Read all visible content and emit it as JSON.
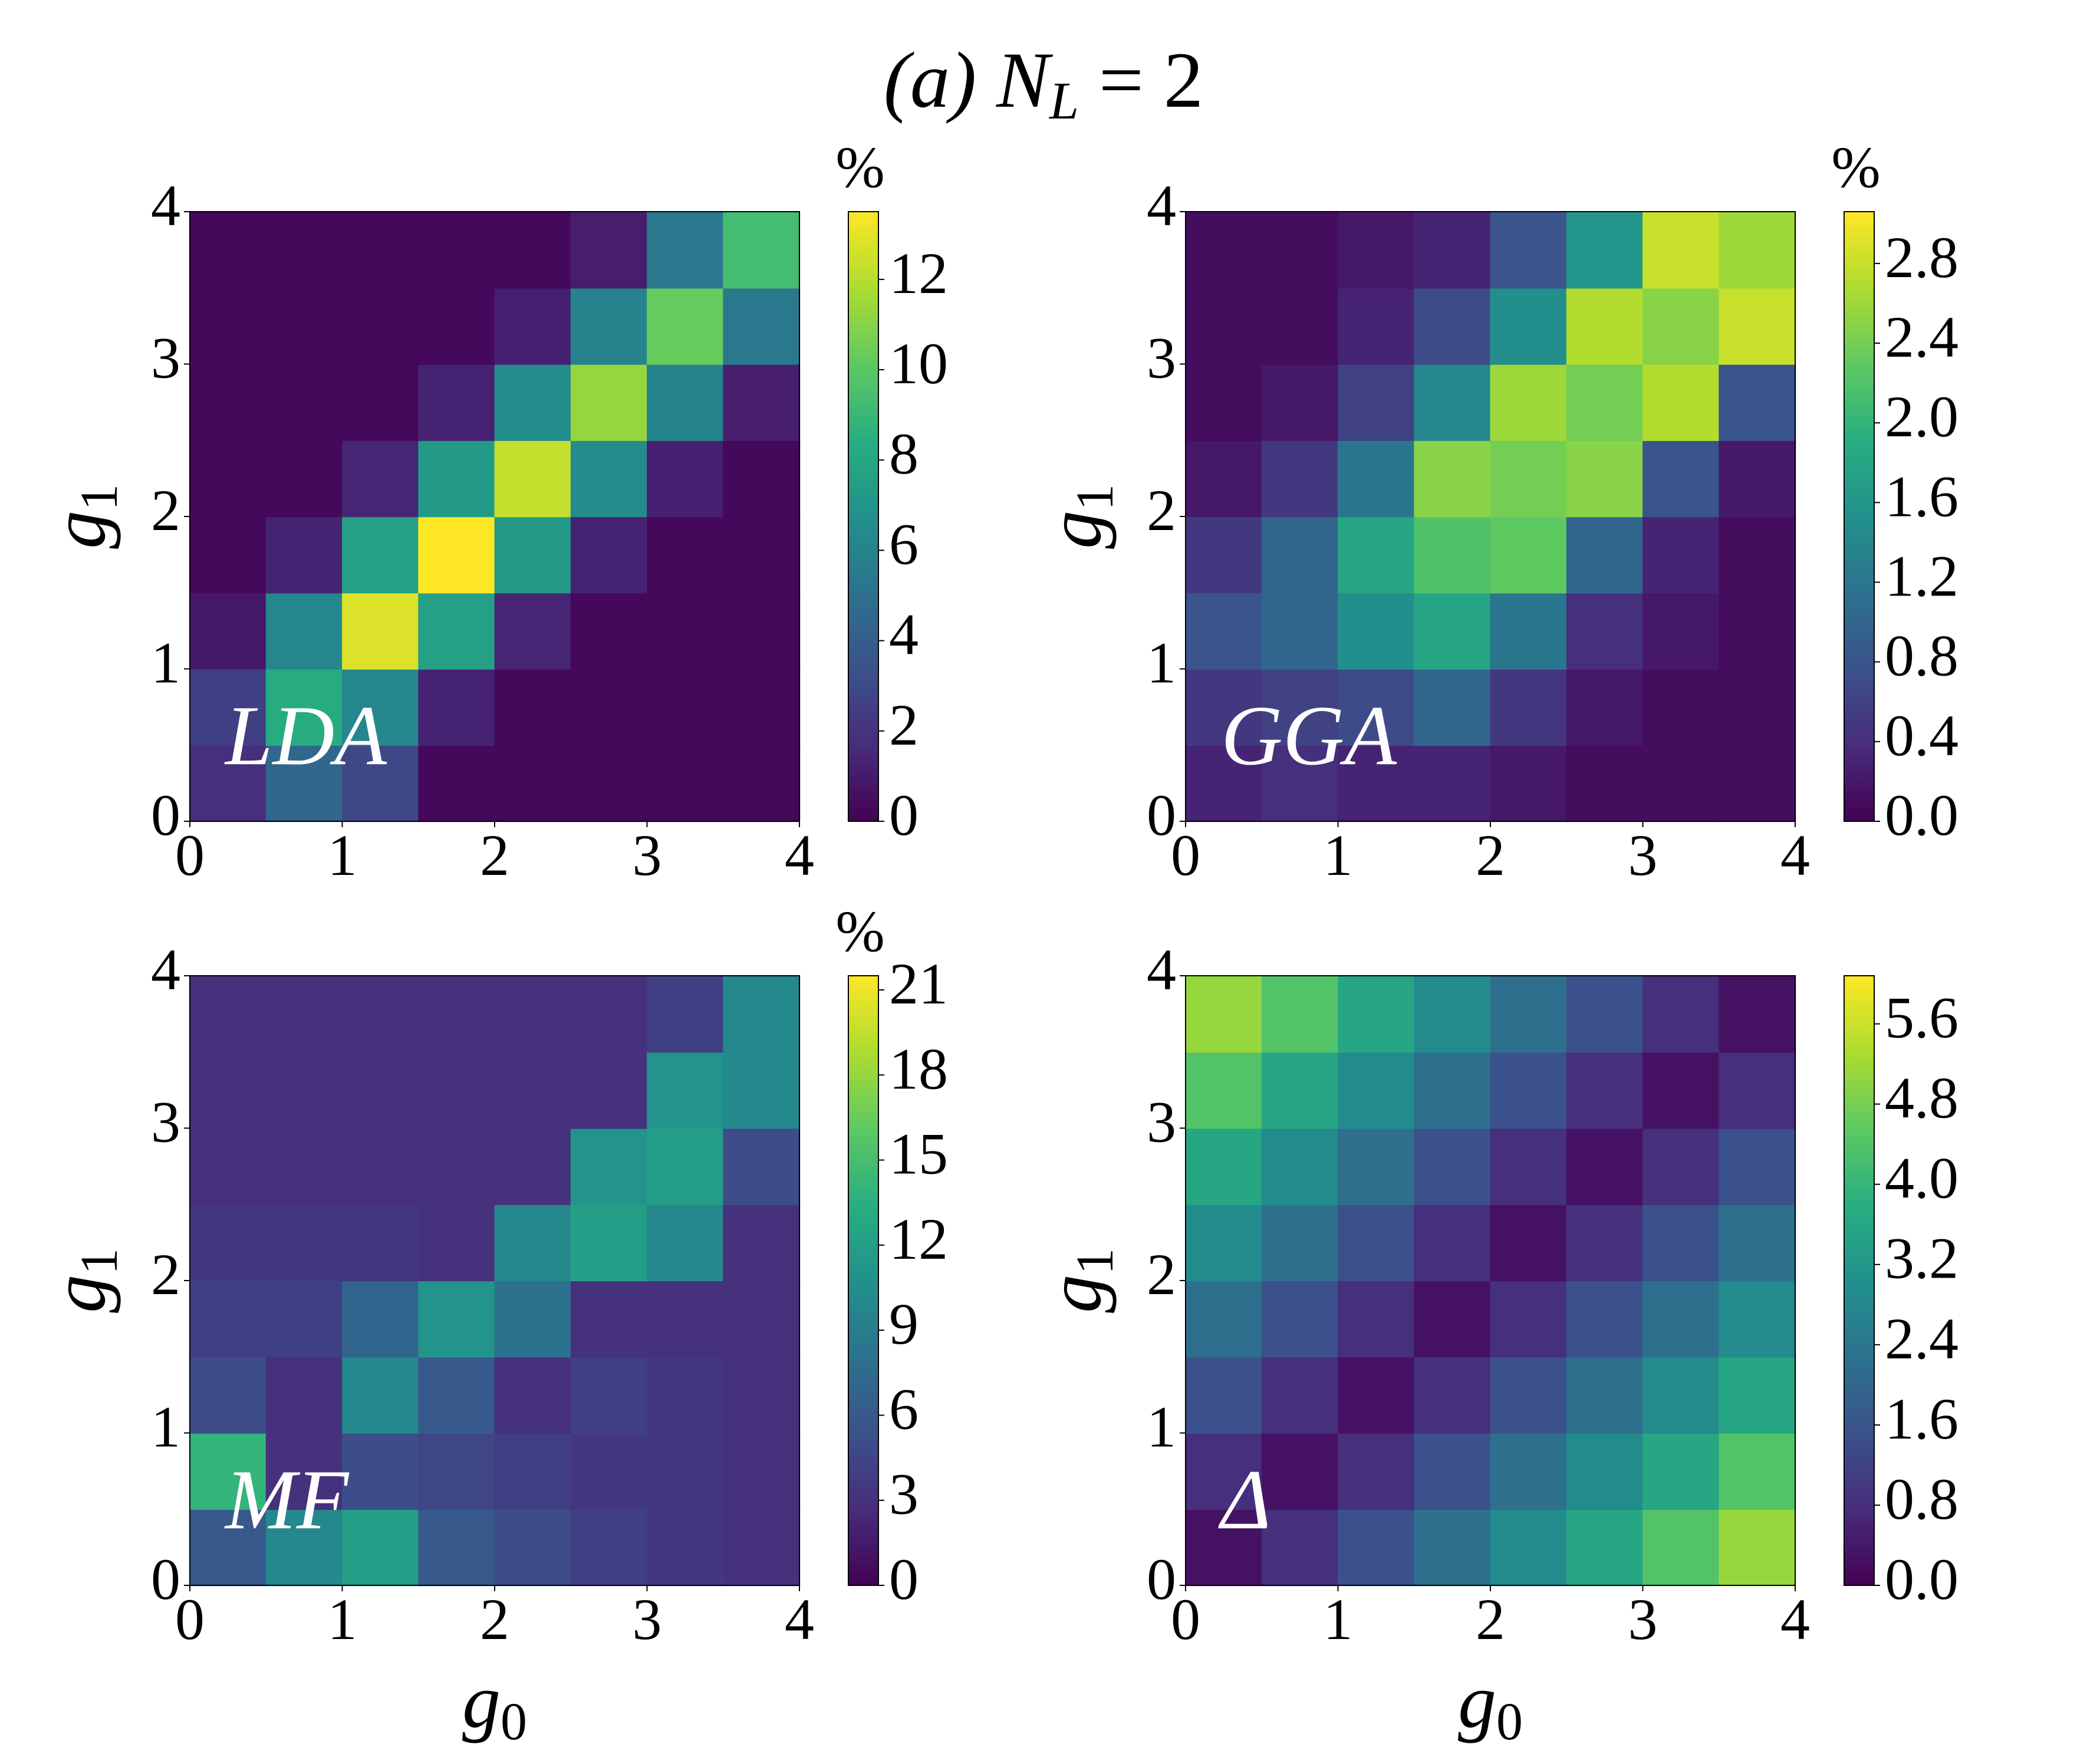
{
  "title": {
    "text": "(a) N",
    "subscript": "L",
    "tail": " = 2"
  },
  "chart_data": [
    {
      "type": "heatmap",
      "label": "LDA",
      "colormap": "viridis",
      "xlim": [
        0,
        4
      ],
      "ylim": [
        0,
        4
      ],
      "xticks": [
        0,
        1,
        2,
        3,
        4
      ],
      "yticks": [
        0,
        1,
        2,
        3,
        4
      ],
      "ylabel": {
        "base": "g",
        "sub": "1"
      },
      "colorbar": {
        "lim": [
          0,
          13.5
        ],
        "ticks": [
          0,
          2,
          4,
          6,
          8,
          10,
          12
        ],
        "label": "%"
      },
      "values": [
        [
          1.8,
          4.5,
          2.9,
          0.3,
          0.3,
          0.3,
          0.3,
          0.3
        ],
        [
          2.5,
          8.3,
          6.2,
          1.3,
          0.3,
          0.3,
          0.3,
          0.3
        ],
        [
          0.9,
          6.2,
          12.8,
          7.6,
          1.4,
          0.3,
          0.3,
          0.3
        ],
        [
          0.3,
          1.3,
          7.6,
          13.8,
          7.3,
          1.3,
          0.3,
          0.3
        ],
        [
          0.3,
          0.3,
          1.4,
          7.3,
          12.3,
          6.5,
          1.2,
          0.3
        ],
        [
          0.3,
          0.3,
          0.3,
          1.3,
          6.5,
          11.3,
          6.0,
          1.1
        ],
        [
          0.3,
          0.3,
          0.3,
          0.3,
          1.2,
          6.0,
          10.3,
          5.4
        ],
        [
          0.3,
          0.3,
          0.3,
          0.3,
          0.3,
          1.1,
          5.4,
          9.3
        ]
      ]
    },
    {
      "type": "heatmap",
      "label": "GGA",
      "colormap": "viridis",
      "xlim": [
        0,
        4
      ],
      "ylim": [
        0,
        4
      ],
      "xticks": [
        0,
        1,
        2,
        3,
        4
      ],
      "yticks": [
        0,
        1,
        2,
        3,
        4
      ],
      "ylabel": {
        "base": "g",
        "sub": "1"
      },
      "colorbar": {
        "lim": [
          0,
          3.06
        ],
        "ticks": [
          {
            "value": 0,
            "label": "0.0"
          },
          0.4,
          0.8,
          1.2,
          1.6,
          {
            "value": 2,
            "label": "2.0"
          },
          2.4,
          2.8
        ],
        "label": "%"
      },
      "values": [
        [
          0.3,
          0.4,
          0.3,
          0.3,
          0.2,
          0.1,
          0.1,
          0.1
        ],
        [
          0.5,
          0.6,
          0.7,
          1.0,
          0.5,
          0.2,
          0.1,
          0.1
        ],
        [
          0.8,
          1.0,
          1.5,
          1.8,
          1.2,
          0.4,
          0.2,
          0.1
        ],
        [
          0.5,
          1.0,
          1.8,
          2.2,
          2.3,
          1.0,
          0.3,
          0.1
        ],
        [
          0.2,
          0.5,
          1.2,
          2.5,
          2.4,
          2.5,
          0.8,
          0.2
        ],
        [
          0.1,
          0.2,
          0.6,
          1.4,
          2.6,
          2.4,
          2.7,
          0.8
        ],
        [
          0.1,
          0.1,
          0.3,
          0.7,
          1.5,
          2.7,
          2.5,
          2.8
        ],
        [
          0.1,
          0.1,
          0.2,
          0.3,
          0.8,
          1.6,
          2.8,
          2.6
        ]
      ]
    },
    {
      "type": "heatmap",
      "label": "MF",
      "colormap": "viridis",
      "xlim": [
        0,
        4
      ],
      "ylim": [
        0,
        4
      ],
      "xticks": [
        0,
        1,
        2,
        3,
        4
      ],
      "yticks": [
        0,
        1,
        2,
        3,
        4
      ],
      "xlabel": {
        "base": "g",
        "sub": "0"
      },
      "ylabel": {
        "base": "g",
        "sub": "1"
      },
      "colorbar": {
        "lim": [
          0,
          21.5
        ],
        "ticks": [
          0,
          3,
          6,
          9,
          12,
          15,
          18,
          21
        ],
        "label": "%"
      },
      "values": [
        [
          6,
          10,
          12,
          6,
          5,
          4,
          3.5,
          3
        ],
        [
          14,
          3,
          5,
          4.5,
          4,
          3.5,
          3.5,
          3
        ],
        [
          5,
          3,
          10,
          6,
          3,
          4,
          3.5,
          3
        ],
        [
          4,
          4,
          7,
          11,
          8,
          3,
          3,
          3
        ],
        [
          3.5,
          3.5,
          3.5,
          3,
          10,
          12,
          10,
          3
        ],
        [
          3,
          3,
          3,
          3,
          3,
          11,
          12,
          5
        ],
        [
          3,
          3,
          3,
          3,
          3,
          3,
          11,
          10
        ],
        [
          3,
          3,
          3,
          3,
          3,
          3,
          4,
          10
        ]
      ]
    },
    {
      "type": "heatmap",
      "label": "Δ",
      "colormap": "viridis",
      "xlim": [
        0,
        4
      ],
      "ylim": [
        0,
        4
      ],
      "xticks": [
        0,
        1,
        2,
        3,
        4
      ],
      "yticks": [
        0,
        1,
        2,
        3,
        4
      ],
      "xlabel": {
        "base": "g",
        "sub": "0"
      },
      "ylabel": {
        "base": "g",
        "sub": "1"
      },
      "colorbar": {
        "lim": [
          0,
          6.08
        ],
        "ticks": [
          {
            "value": 0,
            "label": "0.0"
          },
          0.8,
          1.6,
          2.4,
          3.2,
          {
            "value": 4,
            "label": "4.0"
          },
          4.8,
          5.6
        ]
      },
      "values": [
        [
          0.3,
          0.8,
          1.5,
          2.2,
          2.9,
          3.6,
          4.4,
          5.1
        ],
        [
          0.8,
          0.3,
          0.8,
          1.5,
          2.2,
          2.9,
          3.6,
          4.4
        ],
        [
          1.5,
          0.8,
          0.3,
          0.8,
          1.5,
          2.2,
          2.9,
          3.6
        ],
        [
          2.2,
          1.5,
          0.8,
          0.3,
          0.8,
          1.5,
          2.2,
          2.9
        ],
        [
          2.9,
          2.2,
          1.5,
          0.8,
          0.3,
          0.8,
          1.5,
          2.2
        ],
        [
          3.6,
          2.9,
          2.2,
          1.5,
          0.8,
          0.3,
          0.8,
          1.5
        ],
        [
          4.4,
          3.6,
          2.9,
          2.2,
          1.5,
          0.8,
          0.3,
          0.8
        ],
        [
          5.1,
          4.4,
          3.6,
          2.9,
          2.2,
          1.5,
          0.8,
          0.3
        ]
      ]
    }
  ]
}
